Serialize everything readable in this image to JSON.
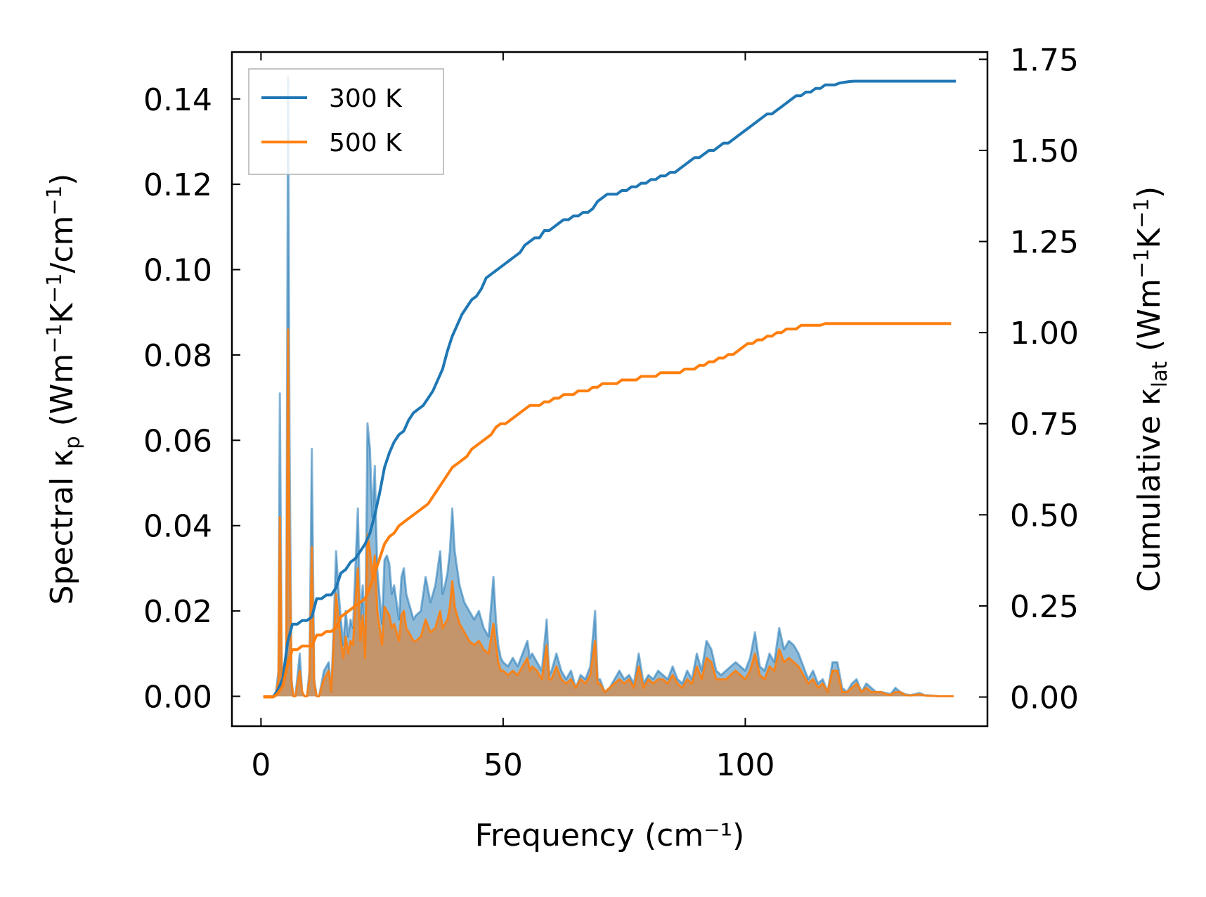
{
  "chart_data": {
    "type": "line",
    "title": "",
    "xlabel": "Frequency (cm⁻¹)",
    "ylabel_left": "Spectral κp (Wm⁻¹K⁻¹/cm⁻¹)",
    "ylabel_right": "Cumulative κlat (Wm⁻¹K⁻¹)",
    "xlim": [
      -6,
      150
    ],
    "ylim_left": [
      -0.007,
      0.151
    ],
    "ylim_right": [
      -0.08,
      1.77
    ],
    "xticks": [
      0,
      50,
      100
    ],
    "xtick_labels": [
      "0",
      "50",
      "100"
    ],
    "yticks_left": [
      0,
      0.02,
      0.04,
      0.06,
      0.08,
      0.1,
      0.12,
      0.14
    ],
    "ytick_labels_left": [
      "0.00",
      "0.02",
      "0.04",
      "0.06",
      "0.08",
      "0.10",
      "0.12",
      "0.14"
    ],
    "yticks_right": [
      0,
      0.25,
      0.5,
      0.75,
      1.0,
      1.25,
      1.5,
      1.75
    ],
    "ytick_labels_right": [
      "0.00",
      "0.25",
      "0.50",
      "0.75",
      "1.00",
      "1.25",
      "1.50",
      "1.75"
    ],
    "legend_position": "top-left",
    "legend": [
      "300 K",
      "500 K"
    ],
    "colors": {
      "s300": "#1f77b4",
      "s500": "#ff7f0e",
      "fill500": "#c4956a"
    },
    "spectral": {
      "x": [
        0.5,
        3,
        3.6,
        3.9,
        4.3,
        4.8,
        5.2,
        5.6,
        5.9,
        6.3,
        6.7,
        7.1,
        8,
        8.5,
        9,
        9.5,
        10,
        10.5,
        11,
        11.5,
        12,
        13,
        14,
        14.5,
        15,
        15.5,
        16,
        16.5,
        17,
        17.5,
        18,
        18.5,
        19,
        19.5,
        20,
        20.5,
        21,
        21.5,
        22,
        22.5,
        23,
        23.5,
        24,
        24.5,
        25,
        25.5,
        26,
        26.5,
        27,
        27.5,
        28,
        28.5,
        29,
        29.5,
        30,
        30.5,
        31,
        31.5,
        32,
        33,
        34,
        35,
        36,
        37,
        37.5,
        38,
        38.5,
        39,
        39.5,
        40,
        41,
        42,
        43,
        44,
        45,
        46,
        47,
        48,
        48.5,
        49,
        49.5,
        50,
        51,
        52,
        53,
        54,
        55,
        55.5,
        56,
        57,
        58,
        59,
        59.5,
        60,
        61,
        62,
        63,
        64,
        65,
        66,
        67,
        68,
        69,
        69.5,
        70,
        71,
        72,
        73,
        74,
        75,
        76,
        77,
        78,
        79,
        80,
        81,
        82,
        83,
        84,
        85,
        86,
        87,
        88,
        89,
        90,
        91,
        92,
        93,
        94,
        95,
        96,
        97,
        98,
        99,
        100,
        101,
        102,
        103,
        104,
        105,
        106,
        107,
        108,
        109,
        110,
        111,
        112,
        113,
        114,
        115,
        116,
        117,
        118,
        119,
        120,
        121,
        122,
        123,
        124,
        125,
        126,
        127,
        128,
        129,
        130,
        131,
        132,
        133,
        134,
        135,
        136,
        137,
        138,
        139,
        140,
        141,
        142,
        143
      ],
      "y300": [
        0,
        0,
        0.006,
        0.071,
        0.004,
        0.006,
        0.008,
        0.145,
        0.06,
        0.004,
        0,
        0,
        0.01,
        0.001,
        0,
        0,
        0.006,
        0.058,
        0.004,
        0,
        0,
        0.006,
        0.008,
        0.001,
        0.016,
        0.034,
        0.025,
        0.018,
        0.012,
        0.02,
        0.014,
        0.018,
        0.016,
        0.03,
        0.044,
        0.018,
        0.026,
        0.012,
        0.064,
        0.058,
        0.042,
        0.054,
        0.03,
        0.023,
        0.017,
        0.032,
        0.033,
        0.031,
        0.024,
        0.026,
        0.022,
        0.018,
        0.028,
        0.03,
        0.024,
        0.022,
        0.02,
        0.018,
        0.019,
        0.02,
        0.028,
        0.022,
        0.026,
        0.034,
        0.024,
        0.026,
        0.029,
        0.034,
        0.044,
        0.034,
        0.026,
        0.022,
        0.02,
        0.018,
        0.02,
        0.016,
        0.014,
        0.028,
        0.018,
        0.012,
        0.009,
        0.008,
        0.007,
        0.009,
        0.007,
        0.01,
        0.013,
        0.009,
        0.01,
        0.008,
        0.006,
        0.018,
        0.005,
        0.006,
        0.01,
        0.006,
        0.004,
        0.006,
        0.002,
        0.005,
        0.004,
        0.007,
        0.02,
        0.004,
        0.004,
        0.001,
        0.002,
        0.004,
        0.006,
        0.004,
        0.005,
        0.003,
        0.01,
        0.003,
        0.005,
        0.004,
        0.006,
        0.005,
        0.004,
        0.007,
        0.004,
        0.003,
        0.006,
        0.004,
        0.01,
        0.006,
        0.013,
        0.011,
        0.006,
        0.005,
        0.006,
        0.007,
        0.008,
        0.007,
        0.006,
        0.009,
        0.015,
        0.007,
        0.006,
        0.01,
        0.008,
        0.016,
        0.011,
        0.013,
        0.012,
        0.01,
        0.007,
        0.004,
        0.006,
        0.003,
        0.004,
        0.001,
        0.008,
        0.008,
        0.002,
        0.001,
        0.003,
        0.004,
        0.001,
        0.003,
        0.002,
        0.001,
        0.001,
        0.0008,
        0.0005,
        0.002,
        0.001,
        0.0005,
        0.0003,
        0.0005,
        0.0008,
        0.0003,
        0.0002,
        0.0001,
        0,
        0,
        0,
        0,
        0,
        0
      ],
      "y500": [
        0,
        0,
        0.004,
        0.042,
        0.003,
        0.004,
        0.006,
        0.086,
        0.036,
        0.003,
        0,
        0,
        0.006,
        0.001,
        0,
        0,
        0.004,
        0.035,
        0.003,
        0,
        0,
        0.004,
        0.006,
        0.001,
        0.012,
        0.024,
        0.018,
        0.013,
        0.009,
        0.014,
        0.01,
        0.013,
        0.012,
        0.022,
        0.03,
        0.013,
        0.019,
        0.009,
        0.038,
        0.034,
        0.028,
        0.033,
        0.02,
        0.016,
        0.012,
        0.021,
        0.02,
        0.019,
        0.016,
        0.017,
        0.015,
        0.013,
        0.019,
        0.02,
        0.016,
        0.015,
        0.014,
        0.013,
        0.013,
        0.014,
        0.018,
        0.015,
        0.016,
        0.02,
        0.016,
        0.017,
        0.018,
        0.021,
        0.027,
        0.021,
        0.017,
        0.015,
        0.013,
        0.012,
        0.013,
        0.011,
        0.01,
        0.017,
        0.012,
        0.008,
        0.006,
        0.006,
        0.005,
        0.006,
        0.005,
        0.007,
        0.009,
        0.006,
        0.007,
        0.006,
        0.004,
        0.012,
        0.004,
        0.004,
        0.007,
        0.004,
        0.003,
        0.004,
        0.002,
        0.004,
        0.003,
        0.005,
        0.013,
        0.003,
        0.003,
        0.001,
        0.002,
        0.003,
        0.004,
        0.003,
        0.004,
        0.002,
        0.007,
        0.002,
        0.004,
        0.003,
        0.004,
        0.004,
        0.003,
        0.005,
        0.003,
        0.002,
        0.004,
        0.003,
        0.007,
        0.004,
        0.009,
        0.008,
        0.004,
        0.004,
        0.004,
        0.005,
        0.006,
        0.005,
        0.004,
        0.006,
        0.01,
        0.005,
        0.004,
        0.007,
        0.006,
        0.011,
        0.008,
        0.009,
        0.008,
        0.007,
        0.005,
        0.003,
        0.004,
        0.002,
        0.003,
        0.001,
        0.006,
        0.006,
        0.001,
        0.001,
        0.002,
        0.003,
        0.001,
        0.002,
        0.001,
        0.001,
        0.001,
        0.0005,
        0.0003,
        0.001,
        0.001,
        0.0003,
        0.0002,
        0.0003,
        0.0005,
        0.0002,
        0.0001,
        0.0001,
        0,
        0,
        0,
        0,
        0,
        0
      ]
    },
    "cumulative": {
      "x": [
        0.5,
        2.5,
        3.5,
        4.5,
        5.5,
        6.5,
        7.5,
        8.5,
        9.5,
        10.5,
        11.5,
        12.5,
        13.5,
        14.5,
        15.5,
        16.5,
        17.5,
        18.5,
        19.5,
        20.5,
        21.5,
        22.5,
        23.5,
        24.5,
        25.5,
        26.5,
        27.5,
        28.5,
        29.5,
        30.5,
        31.5,
        32.5,
        33.5,
        34.5,
        35.5,
        36.5,
        37.5,
        38.5,
        39.5,
        40.5,
        41.5,
        42.5,
        43.5,
        44.5,
        45.5,
        46.5,
        47.5,
        48.5,
        49.5,
        50.5,
        51.5,
        52.5,
        53.5,
        54.5,
        55.5,
        56.5,
        57.5,
        58.5,
        59.5,
        60.5,
        61.5,
        62.5,
        63.5,
        64.5,
        65.5,
        66.5,
        67.5,
        68.5,
        69.5,
        70.5,
        71.5,
        72.5,
        73.5,
        74.5,
        75.5,
        76.5,
        77.5,
        78.5,
        79.5,
        80.5,
        81.5,
        82.5,
        83.5,
        84.5,
        85.5,
        86.5,
        87.5,
        88.5,
        89.5,
        90.5,
        91.5,
        92.5,
        93.5,
        94.5,
        95.5,
        96.5,
        97.5,
        98.5,
        99.5,
        100.5,
        101.5,
        102.5,
        103.5,
        104.5,
        105.5,
        106.5,
        107.5,
        108.5,
        109.5,
        110.5,
        111.5,
        112.5,
        113.5,
        114.5,
        115.5,
        116.5,
        117.5,
        118.5,
        119.5,
        120.5,
        121.5,
        122.5,
        123.5,
        124.5,
        125.5,
        126.5,
        127.5,
        128.5,
        129.5,
        130.5,
        131.5,
        132.5,
        133.5,
        134.5,
        135.5,
        136.5,
        137.5,
        138.5,
        139.5,
        140.5,
        141.5,
        142.5,
        143.5
      ],
      "y300": [
        0,
        0,
        0.02,
        0.05,
        0.15,
        0.2,
        0.2,
        0.21,
        0.21,
        0.22,
        0.27,
        0.27,
        0.28,
        0.28,
        0.3,
        0.34,
        0.35,
        0.37,
        0.38,
        0.4,
        0.42,
        0.45,
        0.5,
        0.56,
        0.63,
        0.67,
        0.7,
        0.72,
        0.73,
        0.76,
        0.78,
        0.79,
        0.8,
        0.82,
        0.84,
        0.87,
        0.9,
        0.95,
        0.99,
        1.02,
        1.05,
        1.07,
        1.09,
        1.1,
        1.12,
        1.15,
        1.16,
        1.17,
        1.18,
        1.19,
        1.2,
        1.21,
        1.22,
        1.24,
        1.25,
        1.26,
        1.26,
        1.28,
        1.28,
        1.29,
        1.3,
        1.31,
        1.31,
        1.32,
        1.32,
        1.33,
        1.33,
        1.34,
        1.36,
        1.37,
        1.38,
        1.38,
        1.38,
        1.39,
        1.39,
        1.4,
        1.4,
        1.41,
        1.41,
        1.42,
        1.42,
        1.43,
        1.43,
        1.44,
        1.44,
        1.45,
        1.46,
        1.47,
        1.48,
        1.48,
        1.49,
        1.5,
        1.5,
        1.51,
        1.52,
        1.52,
        1.53,
        1.54,
        1.55,
        1.56,
        1.57,
        1.58,
        1.59,
        1.6,
        1.6,
        1.61,
        1.62,
        1.63,
        1.64,
        1.65,
        1.65,
        1.66,
        1.66,
        1.67,
        1.67,
        1.68,
        1.68,
        1.68,
        1.685,
        1.687,
        1.689,
        1.69,
        1.69,
        1.69,
        1.69,
        1.69,
        1.69,
        1.69,
        1.69,
        1.69,
        1.69,
        1.69,
        1.69,
        1.69,
        1.69,
        1.69,
        1.69,
        1.69,
        1.69,
        1.69,
        1.69,
        1.69,
        1.69
      ],
      "y500": [
        0,
        0,
        0.01,
        0.03,
        0.09,
        0.13,
        0.13,
        0.14,
        0.14,
        0.14,
        0.17,
        0.17,
        0.18,
        0.18,
        0.19,
        0.22,
        0.23,
        0.24,
        0.25,
        0.26,
        0.27,
        0.3,
        0.34,
        0.38,
        0.42,
        0.44,
        0.45,
        0.47,
        0.48,
        0.49,
        0.5,
        0.51,
        0.52,
        0.53,
        0.55,
        0.57,
        0.59,
        0.61,
        0.63,
        0.64,
        0.65,
        0.66,
        0.68,
        0.69,
        0.7,
        0.71,
        0.72,
        0.74,
        0.75,
        0.75,
        0.76,
        0.77,
        0.78,
        0.79,
        0.8,
        0.8,
        0.8,
        0.81,
        0.81,
        0.82,
        0.82,
        0.83,
        0.83,
        0.83,
        0.84,
        0.84,
        0.84,
        0.85,
        0.85,
        0.86,
        0.86,
        0.86,
        0.86,
        0.87,
        0.87,
        0.87,
        0.87,
        0.88,
        0.88,
        0.88,
        0.88,
        0.89,
        0.89,
        0.89,
        0.89,
        0.89,
        0.9,
        0.9,
        0.9,
        0.91,
        0.91,
        0.92,
        0.92,
        0.93,
        0.93,
        0.94,
        0.94,
        0.95,
        0.96,
        0.97,
        0.97,
        0.98,
        0.98,
        0.99,
        0.99,
        1.0,
        1.0,
        1.01,
        1.01,
        1.01,
        1.02,
        1.02,
        1.02,
        1.02,
        1.02,
        1.025,
        1.025,
        1.025,
        1.025,
        1.025,
        1.025,
        1.025,
        1.025,
        1.025,
        1.025,
        1.025,
        1.025,
        1.025,
        1.025,
        1.025,
        1.025,
        1.025,
        1.025,
        1.025,
        1.025,
        1.025,
        1.025,
        1.025,
        1.025,
        1.025,
        1.025,
        1.025
      ]
    }
  }
}
